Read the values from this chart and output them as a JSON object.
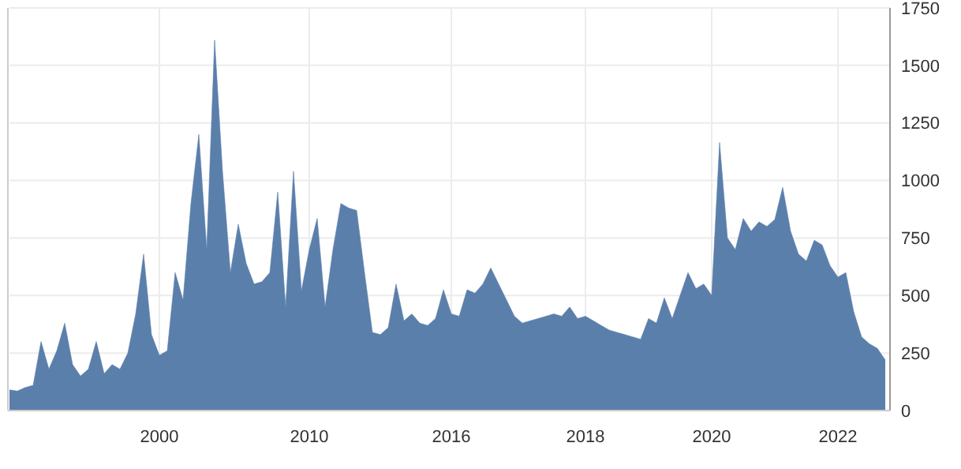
{
  "chart_data": {
    "type": "area",
    "categories": [
      null,
      null,
      null,
      null,
      null,
      null,
      null,
      null,
      null,
      null,
      null,
      null,
      null,
      null,
      null,
      null,
      null,
      null,
      null,
      "2000",
      null,
      null,
      null,
      null,
      null,
      null,
      null,
      null,
      null,
      null,
      null,
      null,
      null,
      null,
      null,
      null,
      null,
      null,
      "2010",
      null,
      null,
      null,
      null,
      null,
      null,
      null,
      null,
      null,
      null,
      null,
      null,
      null,
      null,
      null,
      null,
      null,
      "2016",
      null,
      null,
      null,
      null,
      null,
      null,
      null,
      null,
      null,
      null,
      null,
      null,
      null,
      null,
      null,
      null,
      "2018",
      null,
      null,
      null,
      null,
      null,
      null,
      null,
      null,
      null,
      null,
      null,
      null,
      null,
      null,
      null,
      "2020",
      null,
      null,
      null,
      null,
      null,
      null,
      null,
      null,
      null,
      null,
      null,
      null,
      null,
      null,
      null,
      "2022",
      null,
      null,
      null,
      null,
      null,
      null
    ],
    "series": [
      {
        "color": "#5b7fab",
        "values": [
          90,
          85,
          100,
          110,
          300,
          180,
          260,
          380,
          200,
          150,
          180,
          300,
          160,
          200,
          180,
          250,
          420,
          680,
          330,
          240,
          260,
          600,
          480,
          900,
          1200,
          700,
          1610,
          1040,
          600,
          810,
          640,
          550,
          560,
          600,
          950,
          450,
          1040,
          520,
          700,
          835,
          450,
          700,
          900,
          880,
          870,
          600,
          340,
          330,
          360,
          550,
          390,
          420,
          380,
          370,
          400,
          525,
          420,
          410,
          525,
          510,
          550,
          620,
          550,
          480,
          410,
          380,
          390,
          400,
          410,
          420,
          410,
          450,
          400,
          410,
          390,
          370,
          350,
          340,
          330,
          320,
          310,
          400,
          380,
          490,
          400,
          500,
          600,
          530,
          550,
          500,
          1165,
          750,
          700,
          835,
          780,
          820,
          800,
          830,
          970,
          780,
          680,
          650,
          740,
          720,
          630,
          580,
          600,
          430,
          320,
          290,
          270,
          220
        ]
      }
    ],
    "ylim": [
      0,
      1750
    ],
    "yticks": [
      0,
      250,
      500,
      750,
      1000,
      1250,
      1500,
      1750
    ],
    "grid": true
  }
}
